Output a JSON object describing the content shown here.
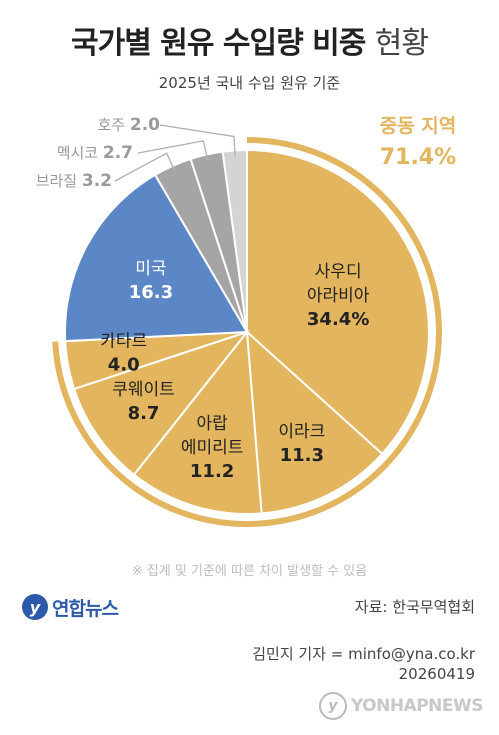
{
  "header": {
    "title_main": "국가별 원유 수입량 비중",
    "title_light": "현황",
    "subtitle": "2025년 국내 수입 원유 기준"
  },
  "chart_data": {
    "type": "pie",
    "categories": [
      "사우디 아라비아",
      "이라크",
      "아랍 에미리트",
      "쿠웨이트",
      "카타르",
      "미국",
      "브라질",
      "멕시코",
      "호주"
    ],
    "values": [
      34.4,
      11.3,
      11.2,
      8.7,
      4.0,
      16.3,
      3.2,
      2.7,
      2.0
    ],
    "display_values": [
      "34.4%",
      "11.3",
      "11.2",
      "8.7",
      "4.0",
      "16.3",
      "3.2",
      "2.7",
      "2.0"
    ],
    "label_lines": [
      [
        "사우디",
        "아라비아"
      ],
      [
        "이라크"
      ],
      [
        "아랍",
        "에미리트"
      ],
      [
        "쿠웨이트"
      ],
      [
        "카타르"
      ],
      [
        "미국"
      ],
      [
        "브라질"
      ],
      [
        "멕시코"
      ],
      [
        "호주"
      ]
    ],
    "colors": [
      "#e2b55e",
      "#e2b55e",
      "#e2b55e",
      "#e2b55e",
      "#e2b55e",
      "#5b87c7",
      "#a5a5a5",
      "#a5a5a5",
      "#d4d4d4"
    ],
    "group": {
      "name": "중동 지역",
      "value": "71.4%",
      "color": "#e2b55e",
      "members": [
        "사우디 아라비아",
        "이라크",
        "아랍 에미리트",
        "쿠웨이트",
        "카타르"
      ]
    }
  },
  "footer": {
    "note": "※ 집계 및 기준에 따른 차이 발생할 수 있음",
    "logo_text": "연합뉴스",
    "source": "자료: 한국무역협회",
    "reporter": "김민지 기자 = minfo@yna.co.kr",
    "date": "20260419",
    "watermark": "YONHAPNEWS"
  }
}
